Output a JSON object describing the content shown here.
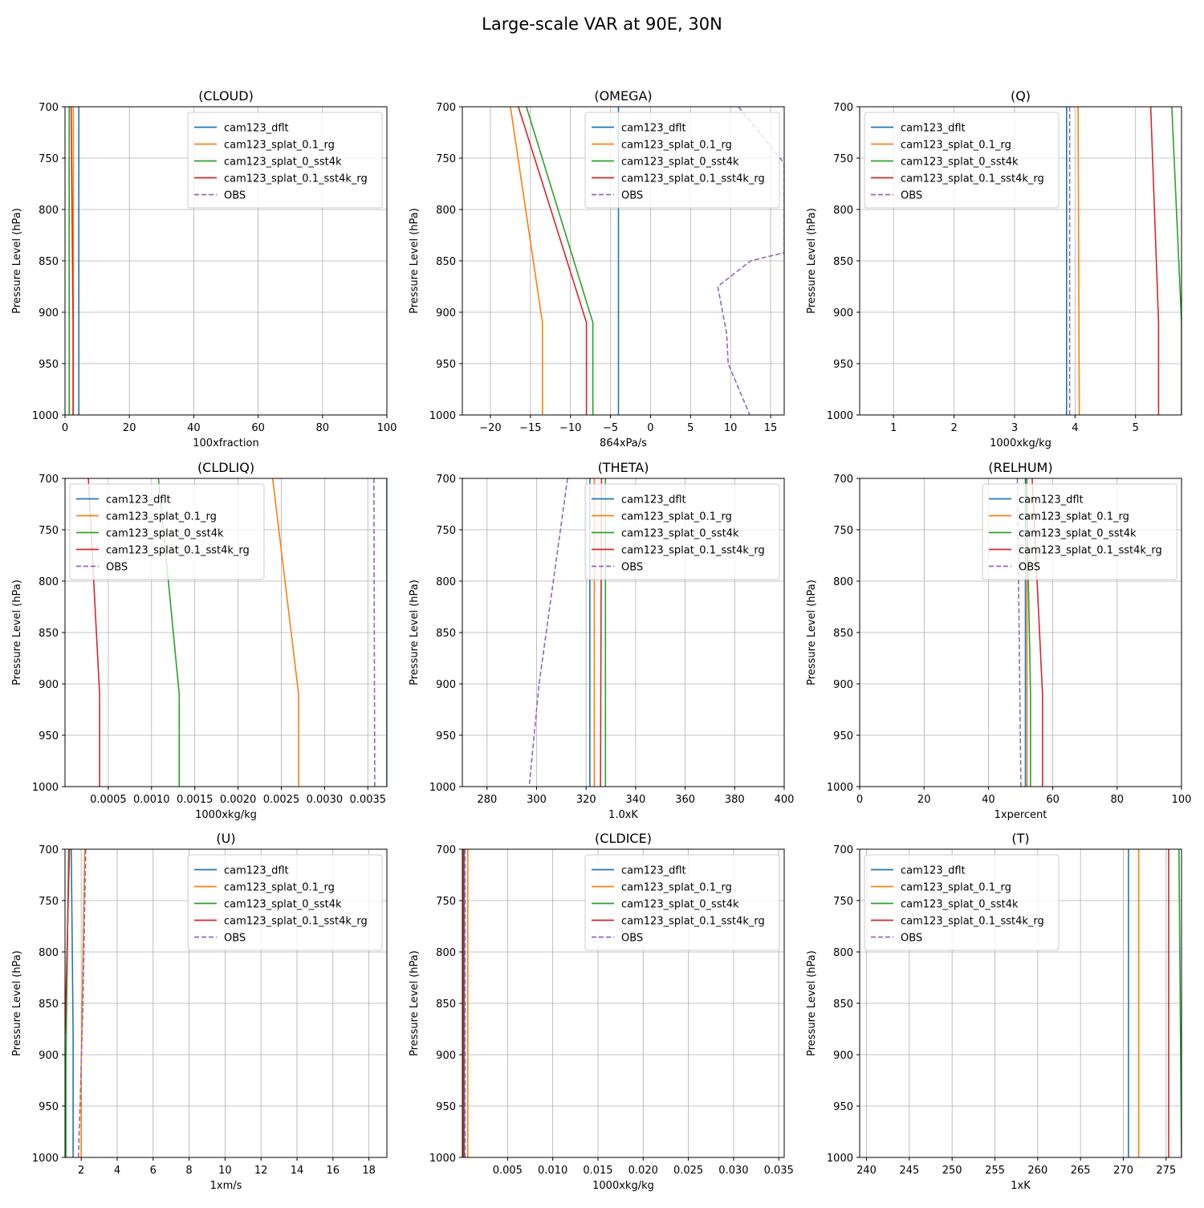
{
  "figure": {
    "title": "Large-scale VAR at 90E, 30N"
  },
  "legend_entries": [
    {
      "name": "cam123_dflt",
      "color": "#1f77b4",
      "dash": false
    },
    {
      "name": "cam123_splat_0.1_rg",
      "color": "#ff7f0e",
      "dash": false
    },
    {
      "name": "cam123_splat_0_sst4k",
      "color": "#2ca02c",
      "dash": false
    },
    {
      "name": "cam123_splat_0.1_sst4k_rg",
      "color": "#d62728",
      "dash": false
    },
    {
      "name": "OBS",
      "color": "#9467bd",
      "dash": true
    }
  ],
  "chart_data": [
    {
      "type": "line",
      "title": "(CLOUD)",
      "xlabel": "100xfraction",
      "ylabel": "Pressure Level (hPa)",
      "xlim": [
        0,
        100
      ],
      "ylim": [
        1000,
        700
      ],
      "grid": true,
      "legend": "upper right",
      "xticks": [
        "0",
        "20",
        "40",
        "60",
        "80",
        "100"
      ],
      "xtick_values": [
        0,
        20,
        40,
        60,
        80,
        100
      ],
      "yticks": [
        "700",
        "750",
        "800",
        "850",
        "900",
        "950",
        "1000"
      ],
      "ytick_values": [
        700,
        750,
        800,
        850,
        900,
        950,
        1000
      ],
      "series": [
        {
          "name": "cam123_dflt",
          "x": [
            4.3,
            4.3
          ],
          "y": [
            700,
            1000
          ]
        },
        {
          "name": "cam123_splat_0.1_rg",
          "x": [
            2.6,
            2.6
          ],
          "y": [
            700,
            1000
          ]
        },
        {
          "name": "cam123_splat_0_sst4k",
          "x": [
            1.3,
            1.3
          ],
          "y": [
            700,
            1000
          ]
        },
        {
          "name": "cam123_splat_0.1_sst4k_rg",
          "x": [
            1.9,
            2.5,
            2.5
          ],
          "y": [
            700,
            910,
            1000
          ]
        },
        {
          "name": "OBS",
          "x": [],
          "y": []
        }
      ]
    },
    {
      "type": "line",
      "title": "(OMEGA)",
      "xlabel": "864xPa/s",
      "ylabel": "Pressure Level (hPa)",
      "xlim": [
        -23.5,
        16.7
      ],
      "ylim": [
        1000,
        700
      ],
      "grid": true,
      "legend": "upper right",
      "xticks": [
        "−20",
        "−15",
        "−10",
        "−5",
        "0",
        "5",
        "10",
        "15"
      ],
      "xtick_values": [
        -20,
        -15,
        -10,
        -5,
        0,
        5,
        10,
        15
      ],
      "yticks": [
        "700",
        "750",
        "800",
        "850",
        "900",
        "950",
        "1000"
      ],
      "ytick_values": [
        700,
        750,
        800,
        850,
        900,
        950,
        1000
      ],
      "series": [
        {
          "name": "cam123_dflt",
          "x": [
            -4,
            -4
          ],
          "y": [
            700,
            1000
          ]
        },
        {
          "name": "cam123_splat_0.1_rg",
          "x": [
            -17.5,
            -13.5,
            -13.5
          ],
          "y": [
            700,
            910,
            1000
          ]
        },
        {
          "name": "cam123_splat_0_sst4k",
          "x": [
            -15.5,
            -7.2,
            -7.2
          ],
          "y": [
            700,
            910,
            1000
          ]
        },
        {
          "name": "cam123_splat_0.1_sst4k_rg",
          "x": [
            -16.5,
            -8.0,
            -8.0
          ],
          "y": [
            700,
            910,
            1000
          ]
        },
        {
          "name": "OBS",
          "x": [
            11,
            16.7,
            16.7,
            12.5,
            8.4,
            9.5,
            9.7,
            12.4
          ],
          "y": [
            700,
            755,
            842,
            850,
            875,
            920,
            950,
            1000
          ]
        }
      ]
    },
    {
      "type": "line",
      "title": "(Q)",
      "xlabel": "1000xkg/kg",
      "ylabel": "Pressure Level (hPa)",
      "xlim": [
        0.44,
        5.76
      ],
      "ylim": [
        1000,
        700
      ],
      "grid": true,
      "legend": "upper left",
      "xticks": [
        "1",
        "2",
        "3",
        "4",
        "5"
      ],
      "xtick_values": [
        1,
        2,
        3,
        4,
        5
      ],
      "yticks": [
        "700",
        "750",
        "800",
        "850",
        "900",
        "950",
        "1000"
      ],
      "ytick_values": [
        700,
        750,
        800,
        850,
        900,
        950,
        1000
      ],
      "series": [
        {
          "name": "cam123_dflt",
          "x": [
            3.86,
            3.86
          ],
          "y": [
            700,
            1000
          ]
        },
        {
          "name": "cam123_splat_0.1_rg",
          "x": [
            4.05,
            4.07
          ],
          "y": [
            700,
            1000
          ]
        },
        {
          "name": "cam123_splat_0_sst4k",
          "x": [
            5.6,
            5.76,
            5.76
          ],
          "y": [
            700,
            910,
            1000
          ]
        },
        {
          "name": "cam123_splat_0.1_sst4k_rg",
          "x": [
            5.25,
            5.38,
            5.38
          ],
          "y": [
            700,
            910,
            1000
          ]
        },
        {
          "name": "OBS",
          "x": [
            3.91,
            3.91
          ],
          "y": [
            700,
            1000
          ]
        }
      ]
    },
    {
      "type": "line",
      "title": "(CLDLIQ)",
      "xlabel": "1000xkg/kg",
      "ylabel": "Pressure Level (hPa)",
      "xlim": [
        0,
        0.00372
      ],
      "ylim": [
        1000,
        700
      ],
      "grid": true,
      "legend": "upper left",
      "xticks": [
        "0.0005",
        "0.0010",
        "0.0015",
        "0.0020",
        "0.0025",
        "0.0030",
        "0.0035"
      ],
      "xtick_values": [
        0.0005,
        0.001,
        0.0015,
        0.002,
        0.0025,
        0.003,
        0.0035
      ],
      "yticks": [
        "700",
        "750",
        "800",
        "850",
        "900",
        "950",
        "1000"
      ],
      "ytick_values": [
        700,
        750,
        800,
        850,
        900,
        950,
        1000
      ],
      "series": [
        {
          "name": "cam123_dflt",
          "x": [
            0.00372,
            0.00372
          ],
          "y": [
            700,
            1000
          ]
        },
        {
          "name": "cam123_splat_0.1_rg",
          "x": [
            0.0024,
            0.0027,
            0.0027
          ],
          "y": [
            700,
            910,
            1000
          ]
        },
        {
          "name": "cam123_splat_0_sst4k",
          "x": [
            0.00108,
            0.00132,
            0.00132
          ],
          "y": [
            700,
            910,
            1000
          ]
        },
        {
          "name": "cam123_splat_0.1_sst4k_rg",
          "x": [
            0.00027,
            0.0004,
            0.0004
          ],
          "y": [
            700,
            910,
            1000
          ]
        },
        {
          "name": "OBS",
          "x": [
            0.00357,
            0.00358
          ],
          "y": [
            700,
            1000
          ]
        }
      ]
    },
    {
      "type": "line",
      "title": "(THETA)",
      "xlabel": "1.0xK",
      "ylabel": "Pressure Level (hPa)",
      "xlim": [
        270,
        400
      ],
      "ylim": [
        1000,
        700
      ],
      "grid": true,
      "legend": "upper right",
      "xticks": [
        "280",
        "300",
        "320",
        "340",
        "360",
        "380",
        "400"
      ],
      "xtick_values": [
        280,
        300,
        320,
        340,
        360,
        380,
        400
      ],
      "yticks": [
        "700",
        "750",
        "800",
        "850",
        "900",
        "950",
        "1000"
      ],
      "ytick_values": [
        700,
        750,
        800,
        850,
        900,
        950,
        1000
      ],
      "series": [
        {
          "name": "cam123_dflt",
          "x": [
            321.5,
            321.5
          ],
          "y": [
            700,
            1000
          ]
        },
        {
          "name": "cam123_splat_0.1_rg",
          "x": [
            323.3,
            323.3
          ],
          "y": [
            700,
            1000
          ]
        },
        {
          "name": "cam123_splat_0_sst4k",
          "x": [
            327.8,
            327.8
          ],
          "y": [
            700,
            1000
          ]
        },
        {
          "name": "cam123_splat_0.1_sst4k_rg",
          "x": [
            326.2,
            325.8
          ],
          "y": [
            700,
            1000
          ]
        },
        {
          "name": "OBS",
          "x": [
            312.5,
            301,
            297
          ],
          "y": [
            700,
            900,
            1000
          ]
        }
      ]
    },
    {
      "type": "line",
      "title": "(RELHUM)",
      "xlabel": "1xpercent",
      "ylabel": "Pressure Level (hPa)",
      "xlim": [
        0,
        100
      ],
      "ylim": [
        1000,
        700
      ],
      "grid": true,
      "legend": "upper right",
      "xticks": [
        "0",
        "20",
        "40",
        "60",
        "80",
        "100"
      ],
      "xtick_values": [
        0,
        20,
        40,
        60,
        80,
        100
      ],
      "yticks": [
        "700",
        "750",
        "800",
        "850",
        "900",
        "950",
        "1000"
      ],
      "ytick_values": [
        700,
        750,
        800,
        850,
        900,
        950,
        1000
      ],
      "series": [
        {
          "name": "cam123_dflt",
          "x": [
            51.5,
            51.5
          ],
          "y": [
            700,
            1000
          ]
        },
        {
          "name": "cam123_splat_0.1_rg",
          "x": [
            52.0,
            52.0
          ],
          "y": [
            700,
            1000
          ]
        },
        {
          "name": "cam123_splat_0_sst4k",
          "x": [
            51.8,
            53.1,
            53.1
          ],
          "y": [
            700,
            910,
            1000
          ]
        },
        {
          "name": "cam123_splat_0.1_sst4k_rg",
          "x": [
            53.6,
            56.8,
            56.8
          ],
          "y": [
            700,
            910,
            1000
          ]
        },
        {
          "name": "OBS",
          "x": [
            49.0,
            50.1
          ],
          "y": [
            700,
            1000
          ]
        }
      ]
    },
    {
      "type": "line",
      "title": "(U)",
      "xlabel": "1xm/s",
      "ylabel": "Pressure Level (hPa)",
      "xlim": [
        1.1,
        19
      ],
      "ylim": [
        1000,
        700
      ],
      "grid": true,
      "legend": "upper right",
      "xticks": [
        "2",
        "4",
        "6",
        "8",
        "10",
        "12",
        "14",
        "16",
        "18"
      ],
      "xtick_values": [
        2,
        4,
        6,
        8,
        10,
        12,
        14,
        16,
        18
      ],
      "yticks": [
        "700",
        "750",
        "800",
        "850",
        "900",
        "950",
        "1000"
      ],
      "ytick_values": [
        700,
        750,
        800,
        850,
        900,
        950,
        1000
      ],
      "series": [
        {
          "name": "cam123_dflt",
          "x": [
            1.45,
            1.55,
            1.55
          ],
          "y": [
            700,
            880,
            1000
          ]
        },
        {
          "name": "cam123_splat_0.1_rg",
          "x": [
            2.2,
            2.0,
            2.0
          ],
          "y": [
            700,
            910,
            1000
          ]
        },
        {
          "name": "cam123_splat_0_sst4k",
          "x": [
            1.3,
            1.15,
            1.15
          ],
          "y": [
            700,
            910,
            1000
          ]
        },
        {
          "name": "cam123_splat_0.1_sst4k_rg",
          "x": [
            1.35,
            1.1
          ],
          "y": [
            700,
            880
          ]
        },
        {
          "name": "OBS",
          "x": [
            2.25,
            2.1,
            1.85
          ],
          "y": [
            700,
            850,
            1000
          ]
        }
      ]
    },
    {
      "type": "line",
      "title": "(CLDICE)",
      "xlabel": "1000xkg/kg",
      "ylabel": "Pressure Level (hPa)",
      "xlim": [
        0,
        0.0356
      ],
      "ylim": [
        1000,
        700
      ],
      "grid": true,
      "legend": "upper right",
      "xticks": [
        "0.005",
        "0.010",
        "0.015",
        "0.020",
        "0.025",
        "0.030",
        "0.035"
      ],
      "xtick_values": [
        0.005,
        0.01,
        0.015,
        0.02,
        0.025,
        0.03,
        0.035
      ],
      "yticks": [
        "700",
        "750",
        "800",
        "850",
        "900",
        "950",
        "1000"
      ],
      "ytick_values": [
        700,
        750,
        800,
        850,
        900,
        950,
        1000
      ],
      "series": [
        {
          "name": "cam123_dflt",
          "x": [
            0.0002,
            0.0002
          ],
          "y": [
            700,
            1000
          ]
        },
        {
          "name": "cam123_splat_0.1_rg",
          "x": [
            0.0006,
            0.0006
          ],
          "y": [
            700,
            1000
          ]
        },
        {
          "name": "cam123_splat_0_sst4k",
          "x": [
            0.0001,
            0.0001
          ],
          "y": [
            700,
            1000
          ]
        },
        {
          "name": "cam123_splat_0.1_sst4k_rg",
          "x": [
            0.00015,
            0.00015
          ],
          "y": [
            700,
            1000
          ]
        },
        {
          "name": "OBS",
          "x": [
            0.0003,
            0.0003
          ],
          "y": [
            700,
            1000
          ]
        }
      ]
    },
    {
      "type": "line",
      "title": "(T)",
      "xlabel": "1xK",
      "ylabel": "Pressure Level (hPa)",
      "xlim": [
        239.2,
        276.8
      ],
      "ylim": [
        1000,
        700
      ],
      "grid": true,
      "legend": "upper left",
      "xticks": [
        "240",
        "245",
        "250",
        "255",
        "260",
        "265",
        "270",
        "275"
      ],
      "xtick_values": [
        240,
        245,
        250,
        255,
        260,
        265,
        270,
        275
      ],
      "yticks": [
        "700",
        "750",
        "800",
        "850",
        "900",
        "950",
        "1000"
      ],
      "ytick_values": [
        700,
        750,
        800,
        850,
        900,
        950,
        1000
      ],
      "series": [
        {
          "name": "cam123_dflt",
          "x": [
            270.6,
            270.6
          ],
          "y": [
            700,
            1000
          ]
        },
        {
          "name": "cam123_splat_0.1_rg",
          "x": [
            271.8,
            271.8
          ],
          "y": [
            700,
            1000
          ]
        },
        {
          "name": "cam123_splat_0_sst4k",
          "x": [
            276.5,
            276.8
          ],
          "y": [
            700,
            1000
          ]
        },
        {
          "name": "cam123_splat_0.1_sst4k_rg",
          "x": [
            275.3,
            275.3
          ],
          "y": [
            700,
            1000
          ]
        },
        {
          "name": "OBS",
          "x": [],
          "y": []
        }
      ]
    }
  ]
}
